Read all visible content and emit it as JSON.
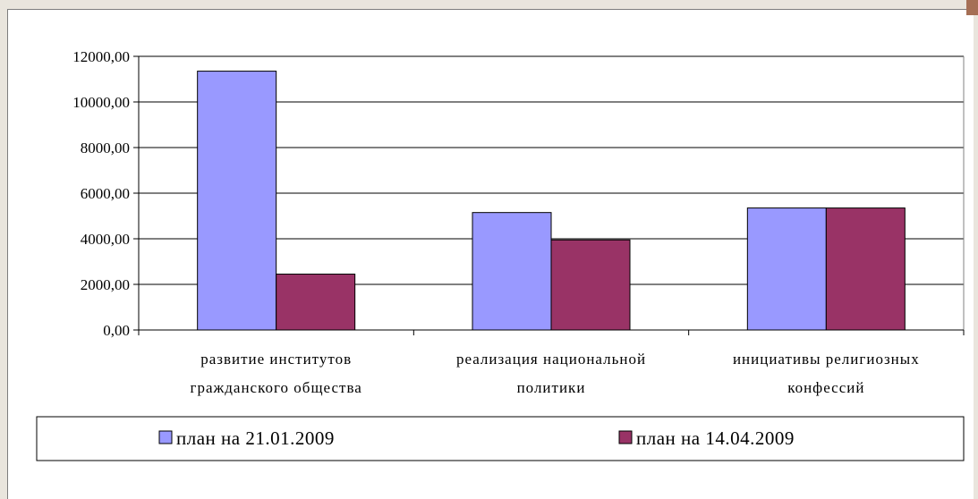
{
  "chart_data": {
    "type": "bar",
    "categories": [
      [
        "развитие институтов",
        "гражданского общества"
      ],
      [
        "реализация национальной",
        "политики"
      ],
      [
        "инициативы религиозных",
        "конфессий"
      ]
    ],
    "series": [
      {
        "name": "план на 21.01.2009",
        "values": [
          11350,
          5150,
          5350
        ],
        "color": "#9999ff"
      },
      {
        "name": "план на 14.04.2009",
        "values": [
          2450,
          3950,
          5350
        ],
        "color": "#993366"
      }
    ],
    "ylim": [
      0,
      12000
    ],
    "y_ticks": [
      "0,00",
      "2000,00",
      "4000,00",
      "6000,00",
      "8000,00",
      "10000,00",
      "12000,00"
    ],
    "y_tick_values": [
      0,
      2000,
      4000,
      6000,
      8000,
      10000,
      12000
    ],
    "grid": true,
    "legend_position": "bottom"
  }
}
